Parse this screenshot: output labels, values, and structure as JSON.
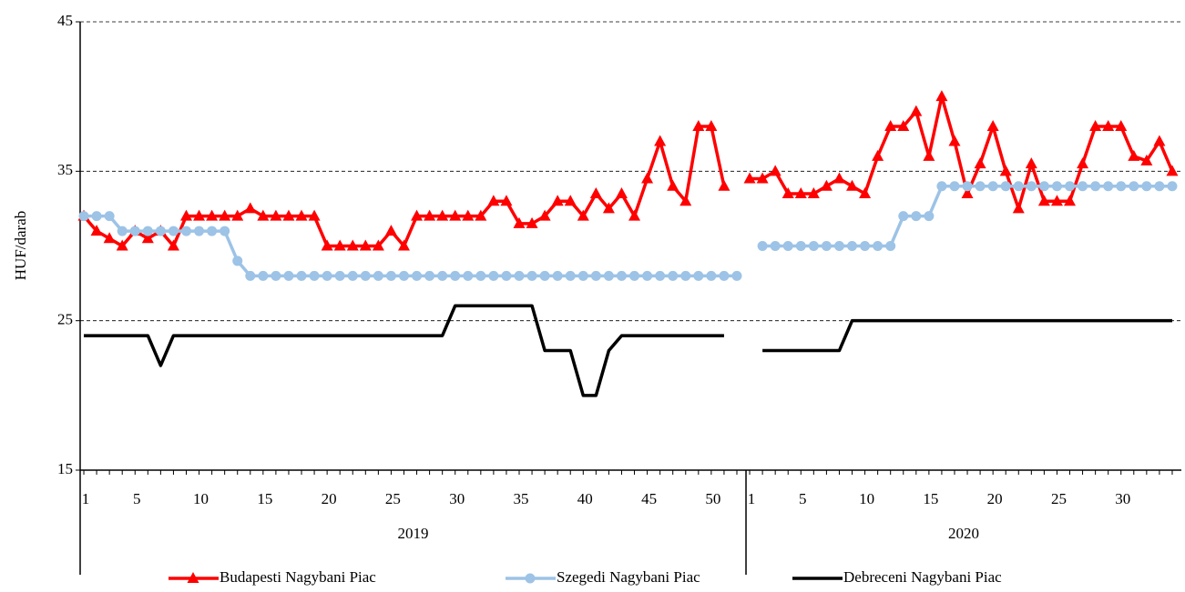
{
  "chart_data": {
    "type": "line",
    "y_label": "HUF/darab",
    "groups": [
      "2019",
      "2020"
    ],
    "categories": [
      1,
      null,
      null,
      null,
      5,
      null,
      null,
      null,
      null,
      10,
      null,
      null,
      null,
      null,
      15,
      null,
      null,
      null,
      null,
      20,
      null,
      null,
      null,
      null,
      25,
      null,
      null,
      null,
      null,
      30,
      null,
      null,
      null,
      null,
      35,
      null,
      null,
      null,
      null,
      40,
      null,
      null,
      null,
      null,
      45,
      null,
      null,
      null,
      null,
      50,
      null,
      null,
      1,
      null,
      null,
      null,
      5,
      null,
      null,
      null,
      null,
      10,
      null,
      null,
      null,
      null,
      15,
      null,
      null,
      null,
      null,
      20,
      null,
      null,
      null,
      null,
      25,
      null,
      null,
      null,
      null,
      30,
      null,
      null,
      null,
      null
    ],
    "ylim": [
      15,
      45
    ],
    "yticks": [
      15,
      25,
      35,
      45
    ],
    "grid": true,
    "legend": "bottom",
    "series": [
      {
        "name": "Budapesti Nagybani Piac",
        "color": "#ff0000",
        "marker": "triangle",
        "values": [
          32,
          31,
          30.5,
          30,
          31,
          30.5,
          31,
          30,
          32,
          32,
          32,
          32,
          32,
          32.5,
          32,
          32,
          32,
          32,
          32,
          30,
          30,
          30,
          30,
          30,
          31,
          30,
          32,
          32,
          32,
          32,
          32,
          32,
          33,
          33,
          31.5,
          31.5,
          32,
          33,
          33,
          32,
          33.5,
          32.5,
          33.5,
          32,
          34.5,
          37,
          34,
          33,
          38,
          38,
          34,
          null,
          34.5,
          34.5,
          35,
          33.5,
          33.5,
          33.5,
          34,
          34.5,
          34,
          33.5,
          36,
          38,
          38,
          39,
          36,
          40,
          37,
          33.5,
          35.5,
          38,
          35,
          32.5,
          35.5,
          33,
          33,
          33,
          35.5,
          38,
          38,
          38,
          36,
          35.7,
          37,
          35
        ]
      },
      {
        "name": "Szegedi Nagybani Piac",
        "color": "#9dc3e6",
        "marker": "circle",
        "values": [
          32,
          32,
          32,
          31,
          31,
          31,
          31,
          31,
          31,
          31,
          31,
          31,
          29,
          28,
          28,
          28,
          28,
          28,
          28,
          28,
          28,
          28,
          28,
          28,
          28,
          28,
          28,
          28,
          28,
          28,
          28,
          28,
          28,
          28,
          28,
          28,
          28,
          28,
          28,
          28,
          28,
          28,
          28,
          28,
          28,
          28,
          28,
          28,
          28,
          28,
          28,
          28,
          null,
          30,
          30,
          30,
          30,
          30,
          30,
          30,
          30,
          30,
          30,
          30,
          32,
          32,
          32,
          34,
          34,
          34,
          34,
          34,
          34,
          34,
          34,
          34,
          34,
          34,
          34,
          34,
          34,
          34,
          34,
          34,
          34,
          34
        ]
      },
      {
        "name": "Debreceni Nagybani Piac",
        "color": "#000000",
        "marker": null,
        "values": [
          24,
          24,
          24,
          24,
          24,
          24,
          22,
          24,
          24,
          24,
          24,
          24,
          24,
          24,
          24,
          24,
          24,
          24,
          24,
          24,
          24,
          24,
          24,
          24,
          24,
          24,
          24,
          24,
          24,
          26,
          26,
          26,
          26,
          26,
          26,
          26,
          23,
          23,
          23,
          20,
          20,
          23,
          24,
          24,
          24,
          24,
          24,
          24,
          24,
          24,
          24,
          null,
          null,
          23,
          23,
          23,
          23,
          23,
          23,
          23,
          25,
          25,
          25,
          25,
          25,
          25,
          25,
          25,
          25,
          25,
          25,
          25,
          25,
          25,
          25,
          25,
          25,
          25,
          25,
          25,
          25,
          25,
          25,
          25,
          25,
          25
        ]
      }
    ]
  }
}
